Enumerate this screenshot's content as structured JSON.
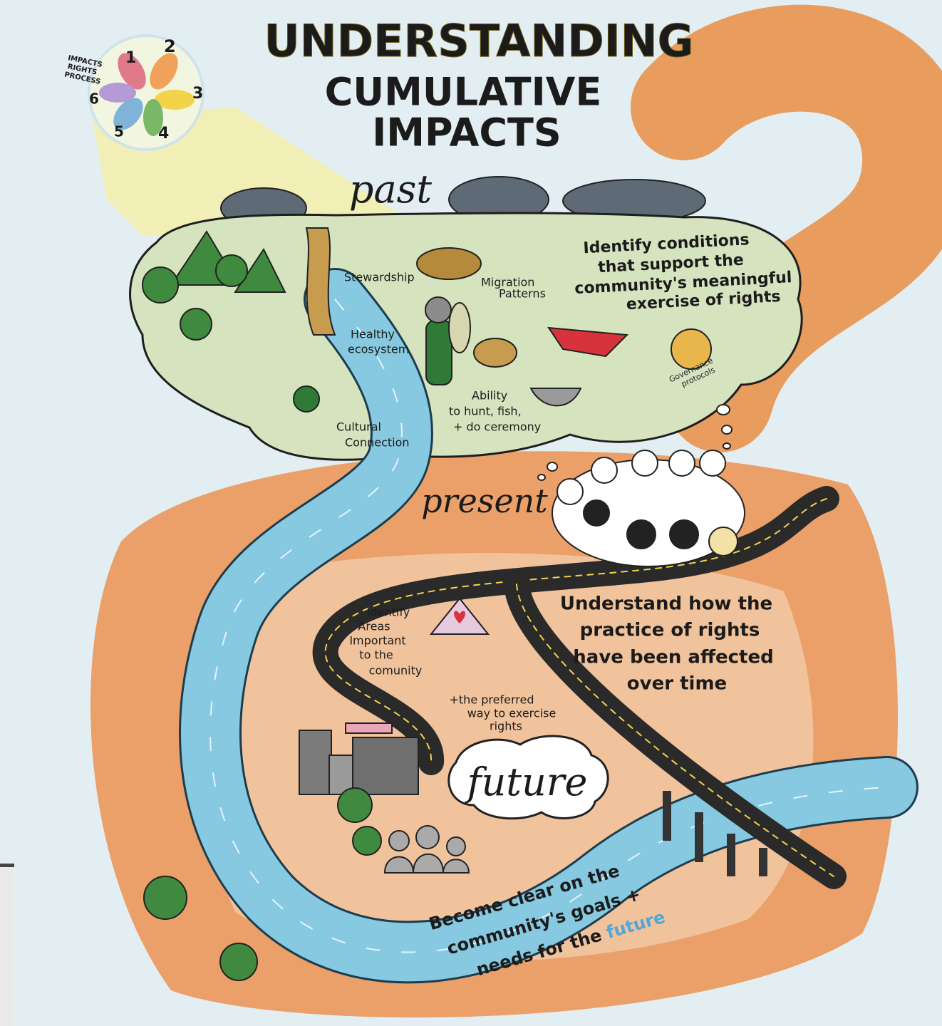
{
  "title": {
    "line1": "UNDERSTANDING",
    "line2": "CUMULATIVE",
    "line3": "IMPACTS"
  },
  "logo": {
    "labels": [
      "IMPACTS",
      "RIGHTS",
      "PROCESS"
    ],
    "numbers": [
      "1",
      "2",
      "3",
      "4",
      "5",
      "6"
    ]
  },
  "past": {
    "heading": "past",
    "stewardship": "Stewardship",
    "migration": [
      "Migration",
      "Patterns"
    ],
    "ecosystem": [
      "Healthy",
      "ecosystem"
    ],
    "ability": [
      "Ability",
      "to hunt, fish,",
      "+ do ceremony"
    ],
    "cultural": [
      "Cultural",
      "Connection"
    ],
    "governance": [
      "Governance",
      "protocols"
    ],
    "goal": [
      "Identify conditions",
      "that support the",
      "community's meaningful",
      "exercise of rights"
    ]
  },
  "present": {
    "heading": "present",
    "areas": [
      "Identify",
      "Areas",
      "Important",
      "to the",
      "comunity"
    ],
    "preferred": [
      "+the preferred",
      "way to exercise",
      "rights"
    ],
    "goal": [
      "Understand  how the",
      "practice of rights",
      "have been affected",
      "over time"
    ]
  },
  "future": {
    "heading": "future",
    "goal": [
      "Become clear on the",
      "community's goals +",
      "needs for the",
      "future"
    ]
  }
}
